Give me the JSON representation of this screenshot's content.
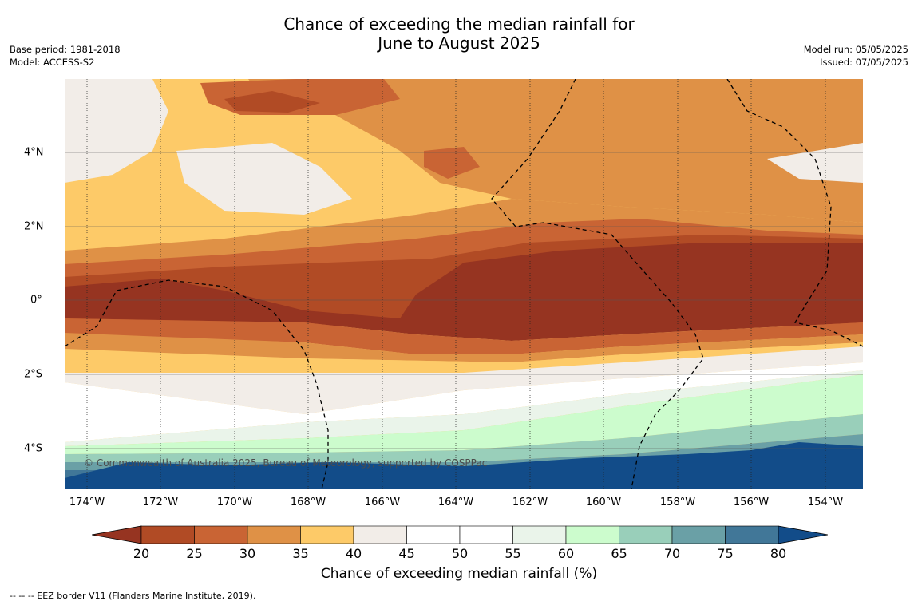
{
  "header": {
    "title_line1": "Chance of exceeding the median rainfall for",
    "title_line2": "June to August 2025",
    "base_period": "Base period: 1981-2018",
    "model": "Model: ACCESS-S2",
    "model_run": "Model run: 05/05/2025",
    "issued": "Issued: 07/05/2025"
  },
  "copyright": "© Commonwealth of Australia 2025, Bureau of Meteorology, supported by COSPPac",
  "footnote": "-- -- -- EEZ border V11 (Flanders Marine Institute, 2019).",
  "chart_data": {
    "type": "heatmap",
    "title": "Chance of exceeding the median rainfall for June to August 2025",
    "x_ticks": [
      "174°W",
      "172°W",
      "170°W",
      "168°W",
      "166°W",
      "164°W",
      "162°W",
      "160°W",
      "158°W",
      "156°W",
      "154°W"
    ],
    "y_ticks": [
      "4°N",
      "2°N",
      "0°",
      "2°S",
      "4°S"
    ],
    "x_tick_values": [
      -174,
      -172,
      -170,
      -168,
      -166,
      -164,
      -162,
      -160,
      -158,
      -156,
      -154
    ],
    "y_tick_values": [
      4,
      2,
      0,
      -2,
      -4
    ],
    "xlim": [
      -174.6,
      -153.0
    ],
    "ylim": [
      -5.2,
      5.9
    ],
    "grid": true,
    "colorbar": {
      "label": "Chance of exceeding median rainfall (%)",
      "ticks": [
        "20",
        "25",
        "30",
        "35",
        "40",
        "45",
        "50",
        "55",
        "60",
        "65",
        "70",
        "75",
        "80"
      ],
      "colors": [
        "#963421",
        "#b14b25",
        "#c96434",
        "#df9146",
        "#fdca68",
        "#f2ede8",
        "#ffffff",
        "#ffffff",
        "#eaf4ea",
        "#ccfccd",
        "#99cfba",
        "#6aa0a6",
        "#417798",
        "#124c89"
      ]
    },
    "latitude_bands": [
      {
        "lat": 5.5,
        "value": 37
      },
      {
        "lat": 4.5,
        "value": 38
      },
      {
        "lat": 3.5,
        "value": 36
      },
      {
        "lat": 2.5,
        "value": 34
      },
      {
        "lat": 1.7,
        "value": 28
      },
      {
        "lat": 1.0,
        "value": 22
      },
      {
        "lat": 0.0,
        "value": 18
      },
      {
        "lat": -0.8,
        "value": 23
      },
      {
        "lat": -1.5,
        "value": 35
      },
      {
        "lat": -2.2,
        "value": 44
      },
      {
        "lat": -3.0,
        "value": 52
      },
      {
        "lat": -3.6,
        "value": 58
      },
      {
        "lat": -4.2,
        "value": 64
      },
      {
        "lat": -4.6,
        "value": 72
      },
      {
        "lat": -5.0,
        "value": 79
      }
    ]
  }
}
